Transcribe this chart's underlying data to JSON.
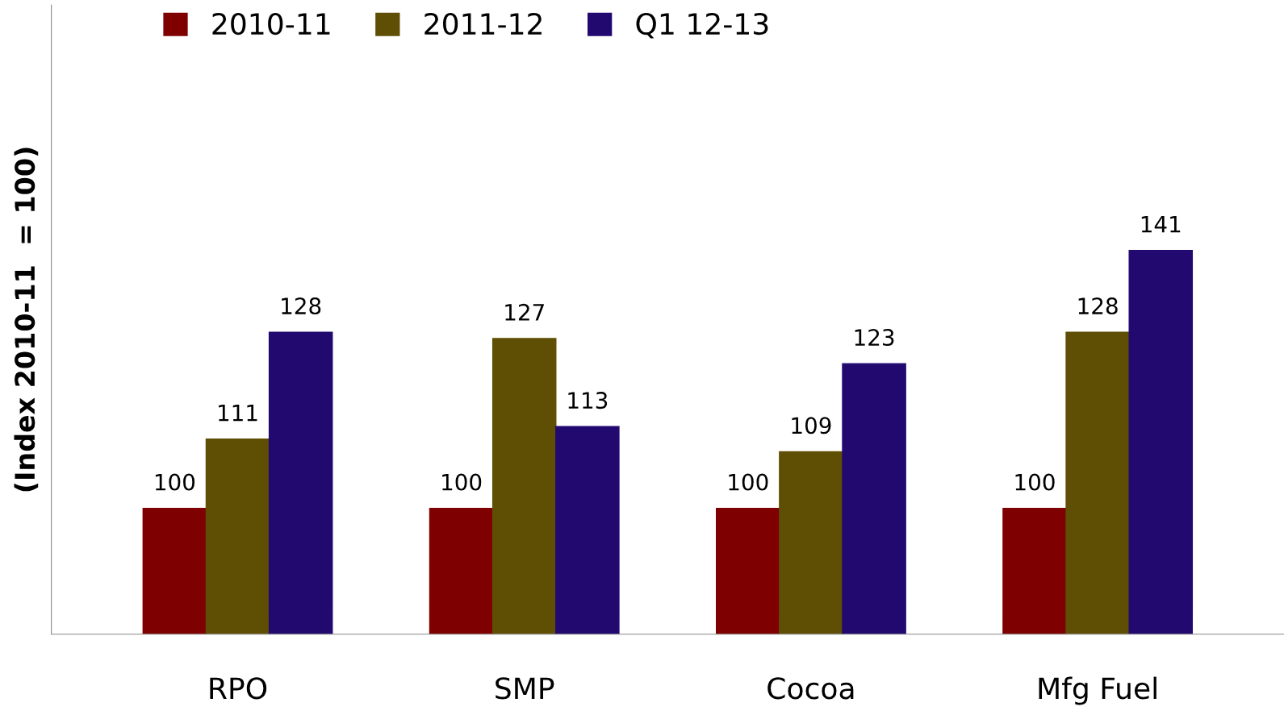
{
  "chart_data": {
    "type": "bar",
    "ylabel": "(Index 2010-11  = 100)",
    "categories": [
      "RPO",
      "SMP",
      "Cocoa",
      "Mfg Fuel"
    ],
    "series": [
      {
        "name": "2010-11",
        "color": "#7f0000",
        "values": [
          100,
          100,
          100,
          100
        ]
      },
      {
        "name": "2011-12",
        "color": "#5f4f05",
        "values": [
          111,
          127,
          109,
          128
        ]
      },
      {
        "name": "Q1 12-13",
        "color": "#21096f",
        "values": [
          128,
          113,
          123,
          141
        ]
      }
    ],
    "ylim": [
      80,
      180
    ],
    "data_labels": true,
    "legend": "top left",
    "tick_labels": "x",
    "grid": false
  }
}
